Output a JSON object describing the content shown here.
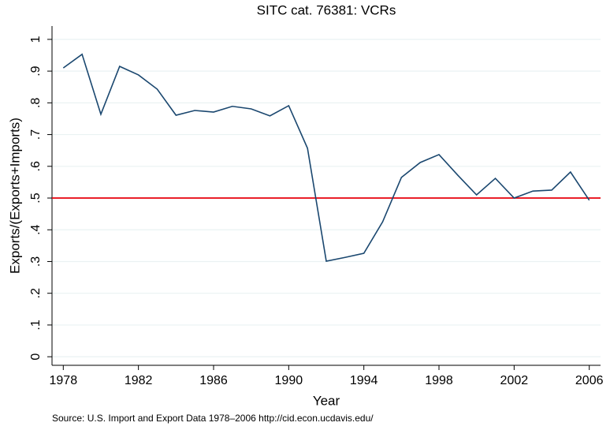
{
  "chart_data": {
    "type": "line",
    "title": "SITC cat. 76381: VCRs",
    "xlabel": "Year",
    "ylabel": "Exports/(Exports+Imports)",
    "note": "Source: U.S. Import and Export Data 1978–2006 http://cid.econ.ucdavis.edu/",
    "x": [
      1978,
      1979,
      1980,
      1981,
      1982,
      1983,
      1984,
      1985,
      1986,
      1987,
      1988,
      1989,
      1990,
      1991,
      1992,
      1993,
      1994,
      1995,
      1996,
      1997,
      1998,
      1999,
      2000,
      2001,
      2002,
      2003,
      2004,
      2005,
      2006
    ],
    "values": [
      0.91,
      0.953,
      0.764,
      0.915,
      0.888,
      0.843,
      0.761,
      0.776,
      0.771,
      0.789,
      0.781,
      0.759,
      0.791,
      0.657,
      0.301,
      0.313,
      0.326,
      0.425,
      0.565,
      0.612,
      0.637,
      0.572,
      0.51,
      0.562,
      0.5,
      0.522,
      0.525,
      0.582,
      0.493
    ],
    "color": "#1a476f",
    "hline": {
      "value": 0.5,
      "color": "#e8000b"
    },
    "xlim": [
      1977.4,
      2006.6
    ],
    "xticks": [
      1978,
      1982,
      1986,
      1990,
      1994,
      1998,
      2002,
      2006
    ],
    "ylim": [
      -0.027,
      1.042
    ],
    "yticks": [
      0,
      {
        "value": 0.1,
        "label": ".1"
      },
      {
        "value": 0.2,
        "label": ".2"
      },
      {
        "value": 0.3,
        "label": ".3"
      },
      {
        "value": 0.4,
        "label": ".4"
      },
      {
        "value": 0.5,
        "label": ".5"
      },
      {
        "value": 0.6,
        "label": ".6"
      },
      {
        "value": 0.7,
        "label": ".7"
      },
      {
        "value": 0.8,
        "label": ".8"
      },
      {
        "value": 0.9,
        "label": ".9"
      },
      1
    ],
    "grid": true
  }
}
